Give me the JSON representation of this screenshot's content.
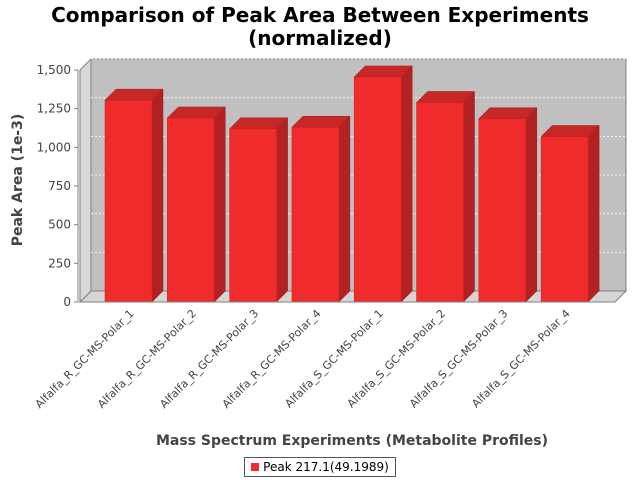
{
  "title_line1": "Comparison of Peak Area Between Experiments",
  "title_line2": "(normalized)",
  "chart_data": {
    "type": "bar",
    "title": "Comparison of Peak Area Between Experiments (normalized)",
    "xlabel": "Mass Spectrum Experiments (Metabolite Profiles)",
    "ylabel": "Peak Area (1e-3)",
    "ylim": [
      0,
      1500
    ],
    "yticks": [
      0,
      250,
      500,
      750,
      1000,
      1250,
      1500
    ],
    "ytick_labels": [
      "0",
      "250",
      "500",
      "750",
      "1,000",
      "1,250",
      "1,500"
    ],
    "categories": [
      "Alfalfa_R_GC-MS-Polar_1",
      "Alfalfa_R_GC-MS-Polar_2",
      "Alfalfa_R_GC-MS-Polar_3",
      "Alfalfa_R_GC-MS-Polar_4",
      "Alfalfa_S_GC-MS-Polar_1",
      "Alfalfa_S_GC-MS-Polar_2",
      "Alfalfa_S_GC-MS-Polar_3",
      "Alfalfa_S_GC-MS-Polar_4"
    ],
    "series": [
      {
        "name": "Peak 217.1(49.1989)",
        "color": "#f02b2b",
        "values": [
          1305,
          1190,
          1120,
          1130,
          1455,
          1290,
          1185,
          1070
        ]
      }
    ],
    "grid": true,
    "legend_position": "bottom",
    "style": "3d-bar"
  }
}
